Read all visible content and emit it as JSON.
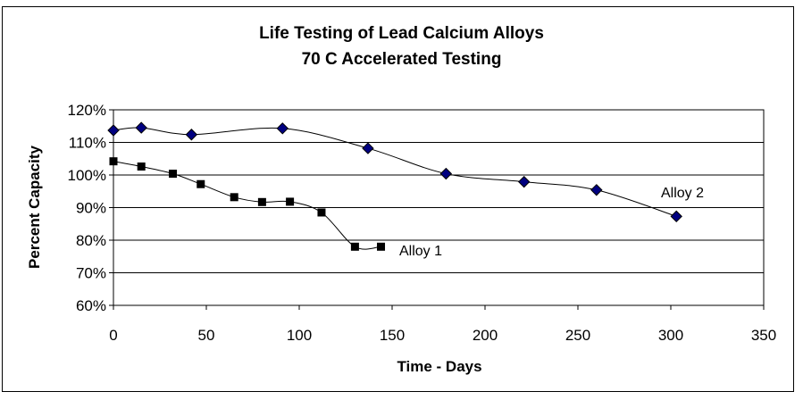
{
  "chart_data": {
    "type": "line",
    "title": "Life Testing of Lead Calcium Alloys",
    "subtitle": "70 C Accelerated Testing",
    "xlabel": "Time - Days",
    "ylabel": "Percent Capacity",
    "xlim": [
      0,
      350
    ],
    "ylim": [
      60,
      120
    ],
    "xticks": [
      0,
      50,
      100,
      150,
      200,
      250,
      300,
      350
    ],
    "yticks": [
      60,
      70,
      80,
      90,
      100,
      110,
      120
    ],
    "ytick_labels": [
      "60%",
      "70%",
      "80%",
      "90%",
      "100%",
      "110%",
      "120%"
    ],
    "grid": "horizontal",
    "series": [
      {
        "name": "Alloy 1",
        "marker": "square",
        "color": "#000000",
        "x": [
          0,
          15,
          32,
          47,
          65,
          80,
          95,
          112,
          130,
          144
        ],
        "y": [
          104.2,
          102.6,
          100.4,
          97.2,
          93.2,
          91.7,
          91.8,
          88.5,
          78.0,
          78.0
        ]
      },
      {
        "name": "Alloy 2",
        "marker": "diamond",
        "color": "#000080",
        "x": [
          0,
          15,
          42,
          91,
          137,
          179,
          221,
          260,
          303
        ],
        "y": [
          113.7,
          114.5,
          112.4,
          114.3,
          108.2,
          100.4,
          97.9,
          95.4,
          87.3
        ]
      }
    ]
  }
}
